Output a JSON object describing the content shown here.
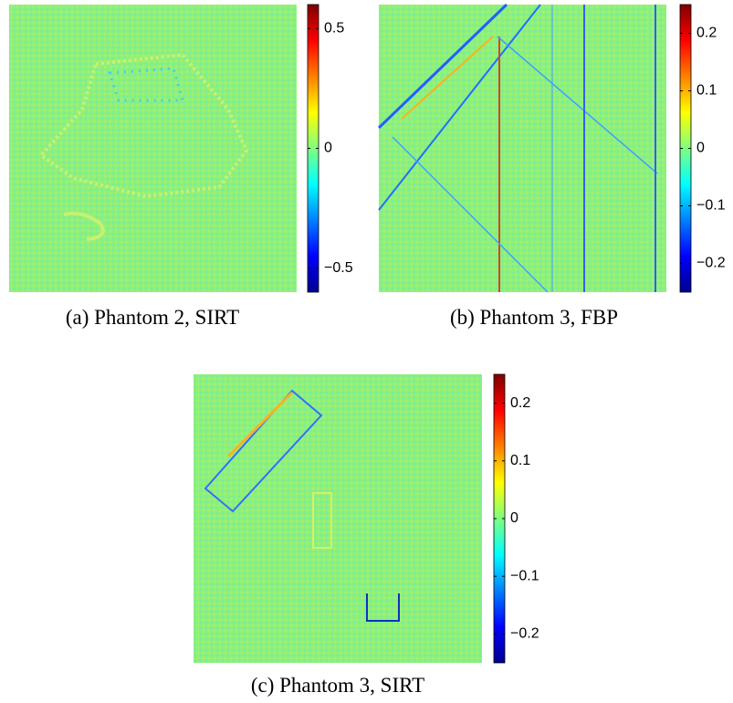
{
  "panels": [
    {
      "caption": "(a) Phantom 2, SIRT",
      "clim": [
        -0.6,
        0.6
      ],
      "ticks": [
        {
          "value": -0.5,
          "label": "−0.5"
        },
        0,
        0.5
      ]
    },
    {
      "caption": "(b) Phantom 3, FBP",
      "clim": [
        -0.25,
        0.25
      ],
      "ticks": [
        {
          "value": -0.2,
          "label": "−0.2"
        },
        {
          "value": -0.1,
          "label": "−0.1"
        },
        0,
        0.1,
        0.2
      ]
    },
    {
      "caption": "(c) Phantom 3, SIRT",
      "clim": [
        -0.25,
        0.25
      ],
      "ticks": [
        {
          "value": -0.2,
          "label": "−0.2"
        },
        {
          "value": -0.1,
          "label": "−0.1"
        },
        0,
        0.1,
        0.2
      ]
    }
  ]
}
